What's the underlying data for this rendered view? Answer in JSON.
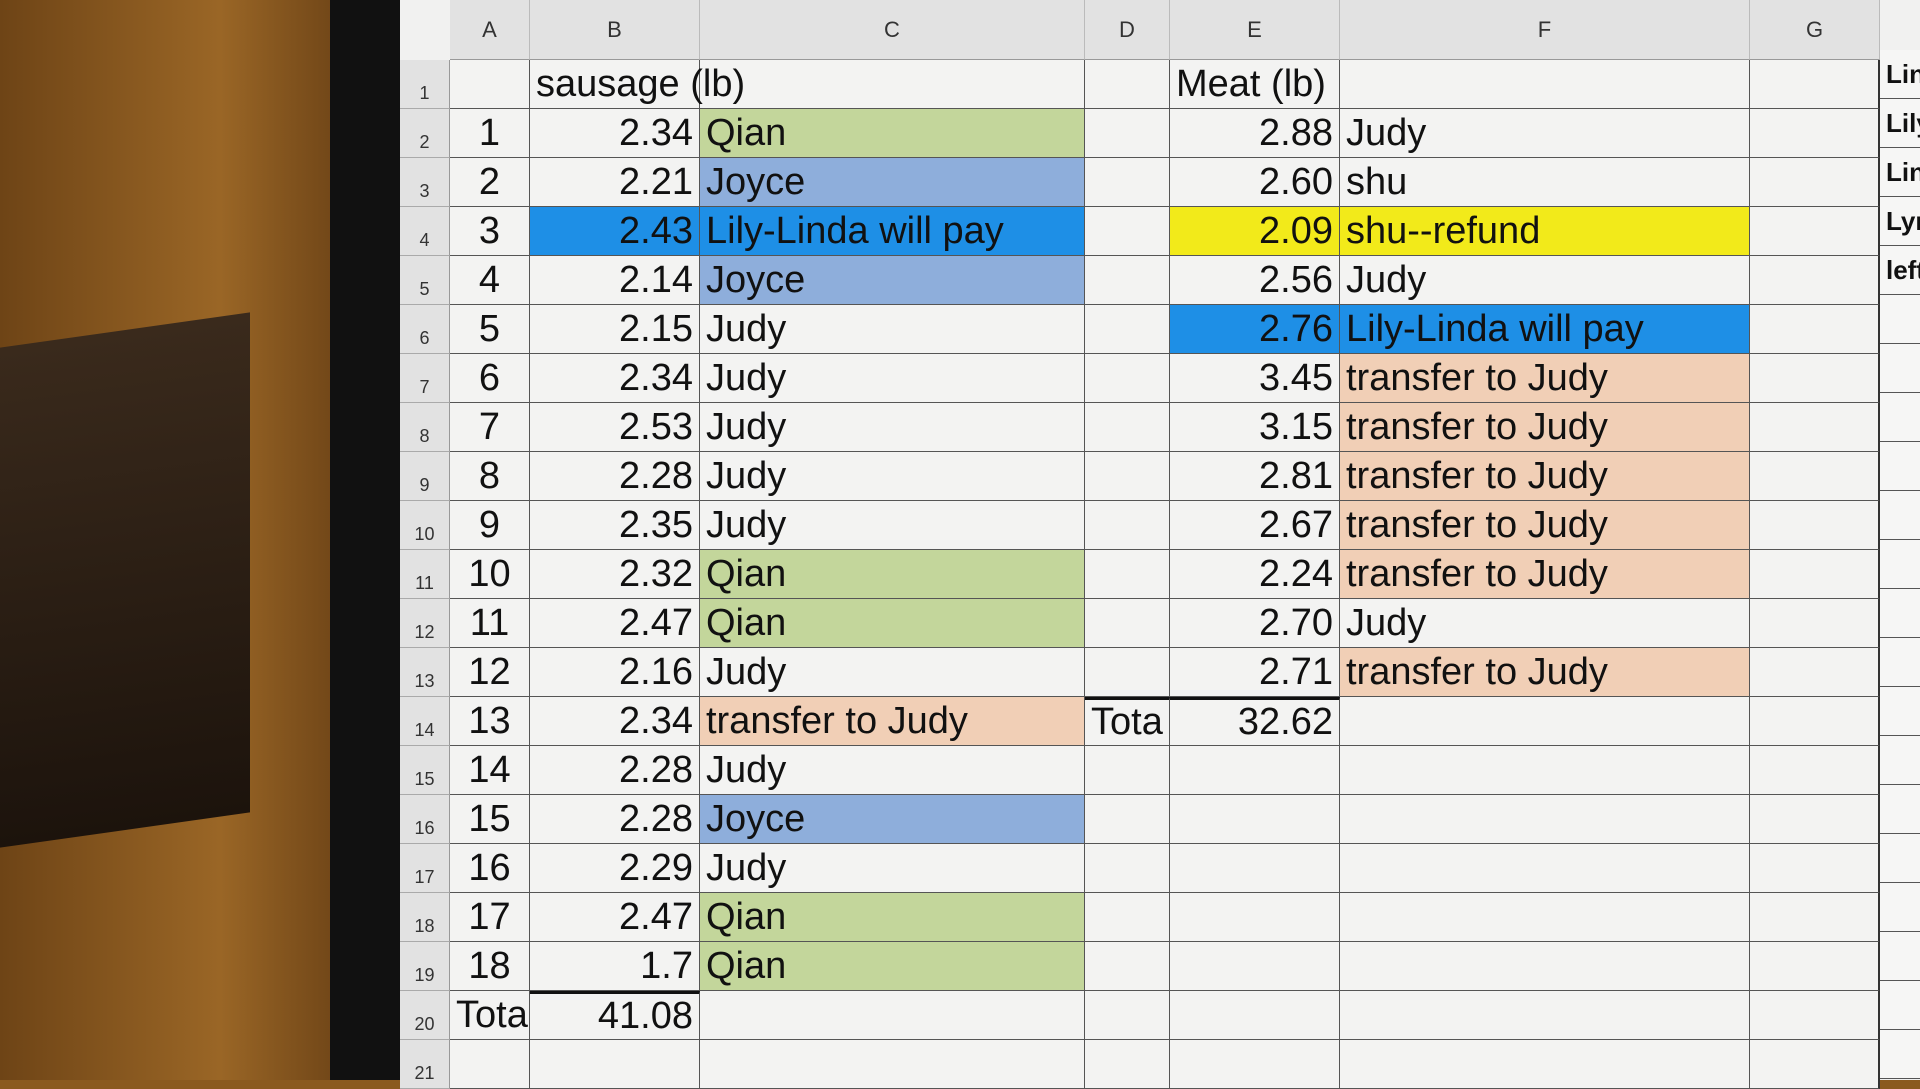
{
  "columns": [
    "A",
    "B",
    "C",
    "D",
    "E",
    "F",
    "G"
  ],
  "colors": {
    "qian": "#c3d69b",
    "joyce": "#8eaedb",
    "lily_linda": "#1e8fe6",
    "transfer": "#f1cfb6",
    "yellow": "#f2ea1a",
    "plain": "#f3f3f2"
  },
  "sausage": {
    "header": "sausage (lb)",
    "rows": [
      {
        "n": "1",
        "w": "2.34",
        "who": "Qian",
        "fill": "qian"
      },
      {
        "n": "2",
        "w": "2.21",
        "who": "Joyce",
        "fill": "joyce"
      },
      {
        "n": "3",
        "w": "2.43",
        "who": "Lily-Linda will pay",
        "fill": "lily_linda",
        "fill_b": true
      },
      {
        "n": "4",
        "w": "2.14",
        "who": "Joyce",
        "fill": "joyce"
      },
      {
        "n": "5",
        "w": "2.15",
        "who": "Judy",
        "fill": "plain"
      },
      {
        "n": "6",
        "w": "2.34",
        "who": "Judy",
        "fill": "plain"
      },
      {
        "n": "7",
        "w": "2.53",
        "who": "Judy",
        "fill": "plain"
      },
      {
        "n": "8",
        "w": "2.28",
        "who": "Judy",
        "fill": "plain"
      },
      {
        "n": "9",
        "w": "2.35",
        "who": "Judy",
        "fill": "plain"
      },
      {
        "n": "10",
        "w": "2.32",
        "who": "Qian",
        "fill": "qian"
      },
      {
        "n": "11",
        "w": "2.47",
        "who": "Qian",
        "fill": "qian"
      },
      {
        "n": "12",
        "w": "2.16",
        "who": "Judy",
        "fill": "plain"
      },
      {
        "n": "13",
        "w": "2.34",
        "who": "transfer to Judy",
        "fill": "transfer"
      },
      {
        "n": "14",
        "w": "2.28",
        "who": "Judy",
        "fill": "plain"
      },
      {
        "n": "15",
        "w": "2.28",
        "who": "Joyce",
        "fill": "joyce"
      },
      {
        "n": "16",
        "w": "2.29",
        "who": "Judy",
        "fill": "plain"
      },
      {
        "n": "17",
        "w": "2.47",
        "who": "Qian",
        "fill": "qian"
      },
      {
        "n": "18",
        "w": "1.7",
        "who": "Qian",
        "fill": "qian"
      }
    ],
    "total_label": "Tota",
    "total": "41.08"
  },
  "meat": {
    "header": "Meat (lb)",
    "rows": [
      {
        "w": "2.88",
        "who": "Judy",
        "fill": "plain"
      },
      {
        "w": "2.60",
        "who": "shu",
        "fill": "plain"
      },
      {
        "w": "2.09",
        "who": "shu--refund",
        "fill": "yellow",
        "fill_e": true
      },
      {
        "w": "2.56",
        "who": "Judy",
        "fill": "plain"
      },
      {
        "w": "2.76",
        "who": "Lily-Linda will pay",
        "fill": "lily_linda",
        "fill_e": true
      },
      {
        "w": "3.45",
        "who": "transfer to Judy",
        "fill": "transfer"
      },
      {
        "w": "3.15",
        "who": "transfer to Judy",
        "fill": "transfer"
      },
      {
        "w": "2.81",
        "who": "transfer to Judy",
        "fill": "transfer"
      },
      {
        "w": "2.67",
        "who": "transfer to Judy",
        "fill": "transfer"
      },
      {
        "w": "2.24",
        "who": "transfer to Judy",
        "fill": "transfer"
      },
      {
        "w": "2.70",
        "who": "Judy",
        "fill": "plain"
      },
      {
        "w": "2.71",
        "who": "transfer to Judy",
        "fill": "transfer"
      }
    ],
    "total_label": "Tota",
    "total": "32.62"
  },
  "col_h": [
    "Lin",
    "Lily",
    "Lin",
    "Lyn",
    "left"
  ]
}
